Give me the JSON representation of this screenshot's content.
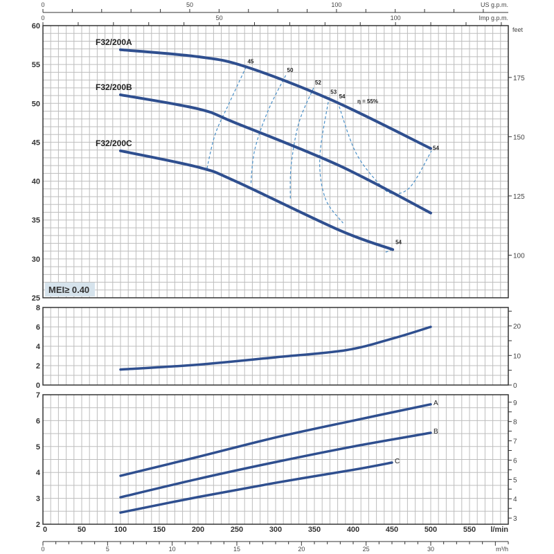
{
  "chart_data": [
    {
      "type": "line",
      "panel": "head",
      "ylim": [
        25,
        60
      ],
      "yticks": [
        25,
        30,
        35,
        40,
        45,
        50,
        55,
        60
      ],
      "right_axis": {
        "unit": "feet",
        "ticks": [
          100,
          125,
          150,
          175
        ]
      },
      "badge": "MEI≥ 0.40",
      "series": [
        {
          "name": "F32/200A",
          "points": [
            [
              100,
              56.9
            ],
            [
              200,
              56.0
            ],
            [
              262,
              54.7
            ],
            [
              373,
              50.4
            ],
            [
              500,
              44.2
            ]
          ]
        },
        {
          "name": "F32/200B",
          "points": [
            [
              100,
              51.1
            ],
            [
              200,
              49.3
            ],
            [
              248,
              47.5
            ],
            [
              382,
              42.0
            ],
            [
              500,
              35.9
            ]
          ]
        },
        {
          "name": "F32/200C",
          "points": [
            [
              100,
              43.9
            ],
            [
              200,
              41.8
            ],
            [
              248,
              40.0
            ],
            [
              382,
              33.7
            ],
            [
              451,
              31.2
            ]
          ]
        }
      ],
      "efficiency": [
        {
          "label": "45",
          "points": [
            [
              262,
              54.7
            ],
            [
              240,
              50
            ],
            [
              222,
              46
            ],
            [
              211,
              41.4
            ]
          ]
        },
        {
          "label": "50",
          "points": [
            [
              313,
              53.6
            ],
            [
              290,
              49
            ],
            [
              273,
              44
            ],
            [
              268,
              39.5
            ]
          ]
        },
        {
          "label": "52",
          "points": [
            [
              349,
              52
            ],
            [
              330,
              47.5
            ],
            [
              320,
              42
            ],
            [
              319,
              37.6
            ]
          ]
        },
        {
          "label": "53",
          "points": [
            [
              369,
              50.8
            ],
            [
              357,
              43.1
            ],
            [
              364,
              37.8
            ],
            [
              387,
              34.6
            ]
          ]
        },
        {
          "label": "54",
          "points": [
            [
              380,
              50.2
            ],
            [
              403,
              43.75
            ],
            [
              433,
              39.7
            ],
            [
              451,
              38.4
            ],
            [
              474,
              39.3
            ],
            [
              501,
              43.9
            ]
          ]
        },
        {
          "label": "54",
          "points": [
            [
              451,
              31.2
            ],
            [
              440,
              30.8
            ]
          ]
        }
      ],
      "best_eff_label": "η = 55%",
      "best_eff_point": [
        400,
        49.6
      ],
      "end_label_A": "54"
    },
    {
      "type": "line",
      "panel": "npsh",
      "ylim": [
        0,
        8
      ],
      "yticks": [
        0,
        2,
        4,
        6,
        8
      ],
      "right_axis": {
        "ticks": [
          0,
          10,
          20
        ]
      },
      "series": [
        {
          "points": [
            [
              100,
              1.6
            ],
            [
              200,
              2.1
            ],
            [
              300,
              2.86
            ],
            [
              391,
              3.6
            ],
            [
              451,
              4.8
            ],
            [
              500,
              6.0
            ]
          ]
        }
      ]
    },
    {
      "type": "line",
      "panel": "power",
      "ylim": [
        2,
        7
      ],
      "yticks": [
        2,
        3,
        4,
        5,
        6,
        7
      ],
      "right_axis": {
        "ticks": [
          3,
          4,
          5,
          6,
          7,
          8,
          9
        ]
      },
      "series": [
        {
          "name": "A",
          "points": [
            [
              100,
              3.87
            ],
            [
              200,
              4.6
            ],
            [
              300,
              5.35
            ],
            [
              400,
              6.0
            ],
            [
              500,
              6.63
            ]
          ]
        },
        {
          "name": "B",
          "points": [
            [
              100,
              3.04
            ],
            [
              200,
              3.75
            ],
            [
              300,
              4.4
            ],
            [
              400,
              5.0
            ],
            [
              500,
              5.53
            ]
          ]
        },
        {
          "name": "C",
          "points": [
            [
              100,
              2.45
            ],
            [
              200,
              3.05
            ],
            [
              300,
              3.6
            ],
            [
              400,
              4.1
            ],
            [
              450,
              4.38
            ]
          ]
        }
      ]
    }
  ],
  "x_axis": {
    "unit": "l/min",
    "xlim": [
      0,
      600
    ],
    "ticks": [
      0,
      50,
      100,
      150,
      200,
      250,
      300,
      350,
      400,
      450,
      500,
      550
    ]
  },
  "m3h_axis": {
    "unit": "m³/h",
    "ticks": [
      0,
      5,
      10,
      15,
      20,
      25,
      30
    ]
  },
  "usgpm_axis": {
    "unit": "US g.p.m.",
    "ticks": [
      0,
      50,
      100
    ]
  },
  "impgpm_axis": {
    "unit": "Imp g.p.m.",
    "ticks": [
      0,
      50,
      100
    ]
  },
  "colors": {
    "curve": "#2f4f8f",
    "eff": "#4a90c8",
    "grid": "#bdbdbd",
    "axis": "#333333",
    "badge": "#d6e3ec"
  }
}
